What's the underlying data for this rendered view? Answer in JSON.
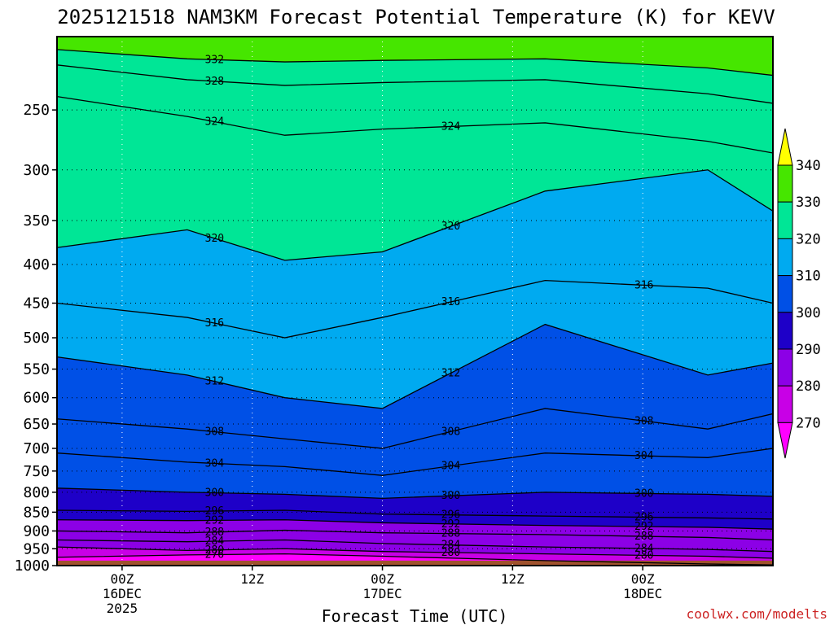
{
  "chart_data": {
    "type": "contour",
    "title": "2025121518 NAM3KM Forecast Potential Temperature (K) for KEVV",
    "xlabel": "Forecast Time (UTC)",
    "ylabel": "",
    "y_scale": "log-pressure (hPa, inverted)",
    "ylim": [
      1000,
      200
    ],
    "y_ticks": [
      "250",
      "300",
      "350",
      "400",
      "450",
      "500",
      "550",
      "600",
      "650",
      "700",
      "750",
      "800",
      "850",
      "900",
      "950",
      "1000"
    ],
    "x_ticks": [
      {
        "time": "2025-12-16T00Z",
        "line1": "00Z",
        "line2": "16DEC",
        "line3": "2025"
      },
      {
        "time": "2025-12-16T12Z",
        "line1": "12Z",
        "line2": "",
        "line3": ""
      },
      {
        "time": "2025-12-17T00Z",
        "line1": "00Z",
        "line2": "17DEC",
        "line3": ""
      },
      {
        "time": "2025-12-17T12Z",
        "line1": "12Z",
        "line2": "",
        "line3": ""
      },
      {
        "time": "2025-12-18T00Z",
        "line1": "00Z",
        "line2": "18DEC",
        "line3": ""
      }
    ],
    "xlim": [
      "2025-12-15T18Z",
      "2025-12-18T12Z"
    ],
    "colorbar": {
      "levels": [
        "340",
        "330",
        "320",
        "310",
        "300",
        "290",
        "280",
        "270"
      ],
      "bands": [
        {
          "range": "<270",
          "color": "#ff00ff"
        },
        {
          "range": "270-280",
          "color": "#c800e6"
        },
        {
          "range": "280-290",
          "color": "#8c00e6"
        },
        {
          "range": "290-300",
          "color": "#1e00c8"
        },
        {
          "range": "300-310",
          "color": "#0050e6"
        },
        {
          "range": "310-320",
          "color": "#00aaf0"
        },
        {
          "range": "320-330",
          "color": "#00e696"
        },
        {
          "range": "330-340",
          "color": "#46e600"
        },
        {
          "range": ">340",
          "color": "#ffff00"
        }
      ]
    },
    "contour_labels": [
      "332",
      "328",
      "324",
      "324",
      "320",
      "320",
      "316",
      "316",
      "316",
      "312",
      "312",
      "308",
      "308",
      "308",
      "304",
      "304",
      "304",
      "300",
      "300",
      "300",
      "296",
      "296",
      "296",
      "292",
      "292",
      "292",
      "288",
      "288",
      "288",
      "284",
      "284",
      "284",
      "280",
      "280",
      "280",
      "276",
      "272"
    ],
    "isotherms_K": [
      {
        "value": 276,
        "x": [
          "2025-12-15T18Z",
          "2025-12-16T06Z",
          "2025-12-16T15Z",
          "2025-12-17T00Z",
          "2025-12-17T15Z",
          "2025-12-18T06Z",
          "2025-12-18T12Z"
        ],
        "p": [
          975,
          968,
          965,
          972,
          985,
          995,
          998
        ]
      },
      {
        "value": 280,
        "x": [
          "2025-12-15T18Z",
          "2025-12-16T06Z",
          "2025-12-16T15Z",
          "2025-12-17T00Z",
          "2025-12-17T15Z",
          "2025-12-18T06Z",
          "2025-12-18T12Z"
        ],
        "p": [
          945,
          955,
          950,
          958,
          965,
          972,
          978
        ]
      },
      {
        "value": 284,
        "x": [
          "2025-12-15T18Z",
          "2025-12-16T06Z",
          "2025-12-16T15Z",
          "2025-12-17T00Z",
          "2025-12-17T15Z",
          "2025-12-18T06Z",
          "2025-12-18T12Z"
        ],
        "p": [
          925,
          930,
          925,
          935,
          945,
          952,
          958
        ]
      },
      {
        "value": 288,
        "x": [
          "2025-12-15T18Z",
          "2025-12-16T06Z",
          "2025-12-16T15Z",
          "2025-12-17T00Z",
          "2025-12-17T15Z",
          "2025-12-18T06Z",
          "2025-12-18T12Z"
        ],
        "p": [
          900,
          905,
          898,
          905,
          910,
          918,
          925
        ]
      },
      {
        "value": 292,
        "x": [
          "2025-12-15T18Z",
          "2025-12-16T06Z",
          "2025-12-16T15Z",
          "2025-12-17T00Z",
          "2025-12-17T15Z",
          "2025-12-18T06Z",
          "2025-12-18T12Z"
        ],
        "p": [
          870,
          872,
          870,
          878,
          885,
          890,
          895
        ]
      },
      {
        "value": 296,
        "x": [
          "2025-12-15T18Z",
          "2025-12-16T06Z",
          "2025-12-16T15Z",
          "2025-12-17T00Z",
          "2025-12-17T15Z",
          "2025-12-18T06Z",
          "2025-12-18T12Z"
        ],
        "p": [
          845,
          848,
          845,
          855,
          860,
          865,
          868
        ]
      },
      {
        "value": 300,
        "x": [
          "2025-12-15T18Z",
          "2025-12-16T06Z",
          "2025-12-16T15Z",
          "2025-12-17T00Z",
          "2025-12-17T15Z",
          "2025-12-18T06Z",
          "2025-12-18T12Z"
        ],
        "p": [
          790,
          800,
          805,
          815,
          800,
          805,
          810
        ]
      },
      {
        "value": 304,
        "x": [
          "2025-12-15T18Z",
          "2025-12-16T06Z",
          "2025-12-16T15Z",
          "2025-12-17T00Z",
          "2025-12-17T15Z",
          "2025-12-18T06Z",
          "2025-12-18T12Z"
        ],
        "p": [
          710,
          730,
          740,
          760,
          710,
          720,
          700
        ]
      },
      {
        "value": 308,
        "x": [
          "2025-12-15T18Z",
          "2025-12-16T06Z",
          "2025-12-16T15Z",
          "2025-12-17T00Z",
          "2025-12-17T15Z",
          "2025-12-18T06Z",
          "2025-12-18T12Z"
        ],
        "p": [
          640,
          660,
          680,
          700,
          620,
          660,
          630
        ]
      },
      {
        "value": 312,
        "x": [
          "2025-12-15T18Z",
          "2025-12-16T06Z",
          "2025-12-16T15Z",
          "2025-12-17T00Z",
          "2025-12-17T15Z",
          "2025-12-18T06Z",
          "2025-12-18T12Z"
        ],
        "p": [
          530,
          560,
          600,
          620,
          480,
          560,
          540
        ]
      },
      {
        "value": 316,
        "x": [
          "2025-12-15T18Z",
          "2025-12-16T06Z",
          "2025-12-16T15Z",
          "2025-12-17T00Z",
          "2025-12-17T15Z",
          "2025-12-18T06Z",
          "2025-12-18T12Z"
        ],
        "p": [
          450,
          470,
          500,
          470,
          420,
          430,
          450
        ]
      },
      {
        "value": 320,
        "x": [
          "2025-12-15T18Z",
          "2025-12-16T06Z",
          "2025-12-16T15Z",
          "2025-12-17T00Z",
          "2025-12-17T15Z",
          "2025-12-18T06Z",
          "2025-12-18T12Z"
        ],
        "p": [
          380,
          360,
          395,
          385,
          320,
          300,
          340
        ]
      },
      {
        "value": 324,
        "x": [
          "2025-12-15T18Z",
          "2025-12-16T06Z",
          "2025-12-16T15Z",
          "2025-12-17T00Z",
          "2025-12-17T15Z",
          "2025-12-18T06Z",
          "2025-12-18T12Z"
        ],
        "p": [
          240,
          255,
          270,
          265,
          260,
          275,
          285
        ]
      },
      {
        "value": 328,
        "x": [
          "2025-12-15T18Z",
          "2025-12-16T06Z",
          "2025-12-16T15Z",
          "2025-12-17T00Z",
          "2025-12-17T15Z",
          "2025-12-18T06Z",
          "2025-12-18T12Z"
        ],
        "p": [
          218,
          228,
          232,
          230,
          228,
          238,
          245
        ]
      },
      {
        "value": 332,
        "x": [
          "2025-12-15T18Z",
          "2025-12-16T06Z",
          "2025-12-16T15Z",
          "2025-12-17T00Z",
          "2025-12-17T15Z",
          "2025-12-18T06Z",
          "2025-12-18T12Z"
        ],
        "p": [
          208,
          214,
          216,
          215,
          214,
          220,
          225
        ]
      }
    ],
    "credit": "coolwx.com/modelts",
    "grid": true
  }
}
